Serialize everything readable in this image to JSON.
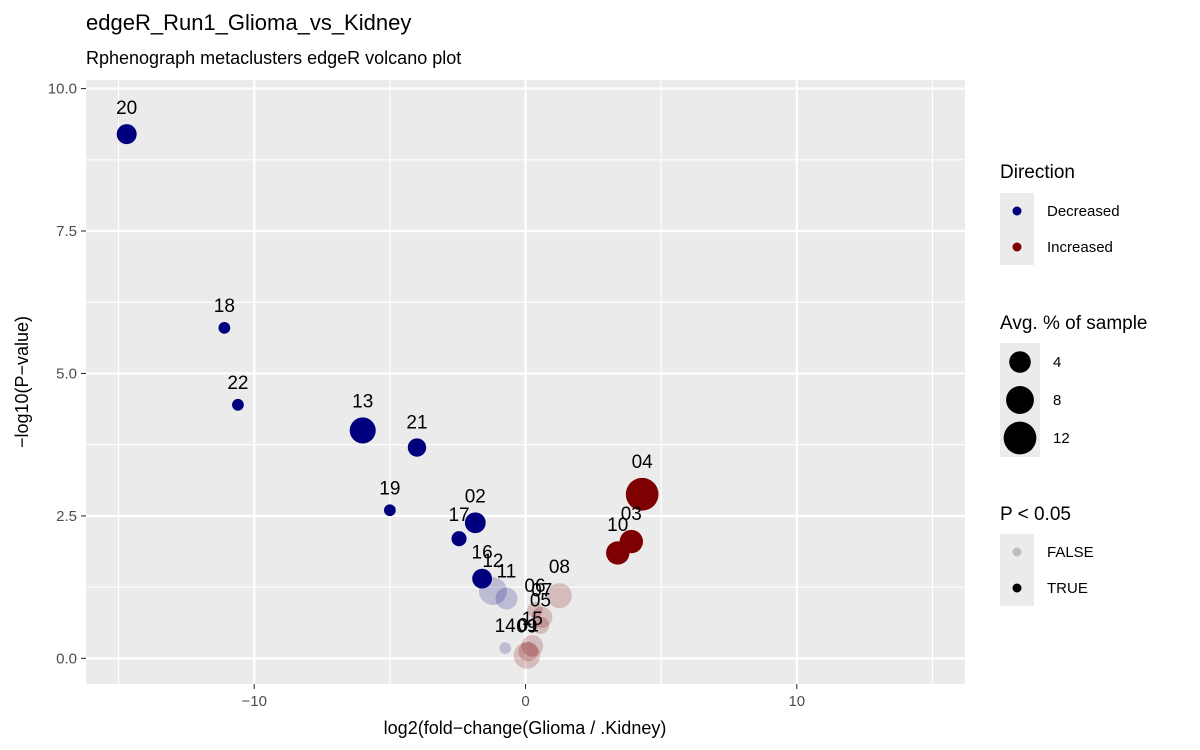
{
  "chart_data": {
    "type": "scatter",
    "title": "edgeR_Run1_Glioma_vs_Kidney",
    "subtitle": "Rphenograph metaclusters edgeR volcano plot",
    "xlabel": "log2(fold−change(Glioma / .Kidney)",
    "ylabel": "−log10(P−value)",
    "xlim": [
      -16.2,
      16.2
    ],
    "ylim": [
      -0.45,
      10.15
    ],
    "xticks": [
      -10,
      0,
      10
    ],
    "xtick_labels": [
      "−10",
      "0",
      "10"
    ],
    "yticks": [
      0,
      2.5,
      5.0,
      7.5,
      10.0
    ],
    "ytick_labels": [
      "0.0",
      "2.5",
      "5.0",
      "7.5",
      "10.0"
    ],
    "grid": true,
    "legend_position": "right",
    "colors": {
      "Decreased": "#00007f",
      "Increased": "#7f0000",
      "panel_bg": "#ebebeb",
      "grid": "#ffffff"
    },
    "legends": [
      {
        "title": "Direction",
        "type": "color",
        "items": [
          "Decreased",
          "Increased"
        ]
      },
      {
        "title": "Avg. % of sample",
        "type": "size",
        "items": [
          4,
          8,
          12
        ]
      },
      {
        "title": "P < 0.05",
        "type": "alpha",
        "items": [
          "FALSE",
          "TRUE"
        ]
      }
    ],
    "points": [
      {
        "label": "20",
        "x": -14.7,
        "y": 9.2,
        "direction": "Decreased",
        "size": 3.2,
        "significant": true
      },
      {
        "label": "18",
        "x": -11.1,
        "y": 5.8,
        "direction": "Decreased",
        "size": 0.5,
        "significant": true
      },
      {
        "label": "22",
        "x": -10.6,
        "y": 4.45,
        "direction": "Decreased",
        "size": 0.5,
        "significant": true
      },
      {
        "label": "13",
        "x": -6.0,
        "y": 4.0,
        "direction": "Decreased",
        "size": 6.7,
        "significant": true
      },
      {
        "label": "21",
        "x": -4.0,
        "y": 3.7,
        "direction": "Decreased",
        "size": 2.5,
        "significant": true
      },
      {
        "label": "19",
        "x": -5.0,
        "y": 2.6,
        "direction": "Decreased",
        "size": 0.5,
        "significant": true
      },
      {
        "label": "02",
        "x": -1.85,
        "y": 2.38,
        "direction": "Decreased",
        "size": 3.6,
        "significant": true
      },
      {
        "label": "17",
        "x": -2.45,
        "y": 2.1,
        "direction": "Decreased",
        "size": 1.3,
        "significant": true
      },
      {
        "label": "16",
        "x": -1.6,
        "y": 1.4,
        "direction": "Decreased",
        "size": 3.1,
        "significant": true
      },
      {
        "label": "12",
        "x": -1.2,
        "y": 1.18,
        "direction": "Decreased",
        "size": 8.0,
        "significant": false
      },
      {
        "label": "11",
        "x": -0.7,
        "y": 1.05,
        "direction": "Decreased",
        "size": 4.2,
        "significant": false
      },
      {
        "label": "14",
        "x": -0.75,
        "y": 0.18,
        "direction": "Decreased",
        "size": 0.5,
        "significant": false
      },
      {
        "label": "04",
        "x": 4.3,
        "y": 2.88,
        "direction": "Increased",
        "size": 12.0,
        "significant": true
      },
      {
        "label": "03",
        "x": 3.9,
        "y": 2.05,
        "direction": "Increased",
        "size": 5.0,
        "significant": true
      },
      {
        "label": "10",
        "x": 3.4,
        "y": 1.85,
        "direction": "Increased",
        "size": 5.0,
        "significant": true
      },
      {
        "label": "08",
        "x": 1.25,
        "y": 1.1,
        "direction": "Increased",
        "size": 6.0,
        "significant": false
      },
      {
        "label": "06",
        "x": 0.35,
        "y": 0.85,
        "direction": "Increased",
        "size": 1.5,
        "significant": false
      },
      {
        "label": "07",
        "x": 0.6,
        "y": 0.72,
        "direction": "Increased",
        "size": 3.8,
        "significant": false
      },
      {
        "label": "05",
        "x": 0.55,
        "y": 0.58,
        "direction": "Increased",
        "size": 2.1,
        "significant": false
      },
      {
        "label": "15",
        "x": 0.25,
        "y": 0.22,
        "direction": "Increased",
        "size": 4.0,
        "significant": false
      },
      {
        "label": "09",
        "x": 0.05,
        "y": 0.05,
        "direction": "Increased",
        "size": 7.0,
        "significant": false
      },
      {
        "label": "01",
        "x": 0.1,
        "y": 0.12,
        "direction": "Increased",
        "size": 3.0,
        "significant": false
      }
    ]
  }
}
